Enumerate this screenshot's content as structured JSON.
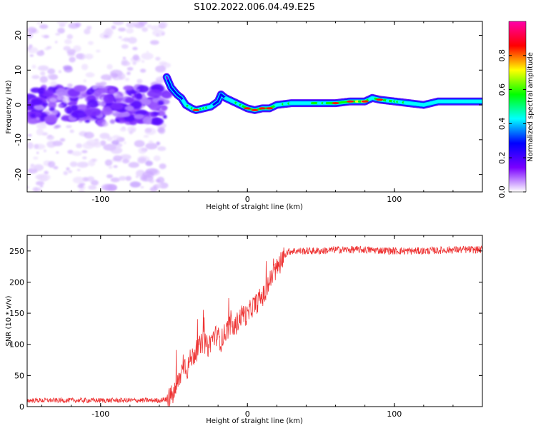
{
  "title": "S102.2022.006.04.49.E25",
  "chart_data": [
    {
      "type": "heatmap",
      "xlabel": "Height of straight line (km)",
      "ylabel": "Frequency (Hz)",
      "xlim": [
        -150,
        160
      ],
      "ylim": [
        -25,
        24
      ],
      "xticks": [
        -100,
        0,
        100
      ],
      "xtick_labels": [
        "-100",
        "0",
        "100"
      ],
      "yticks": [
        -20,
        -10,
        0,
        10,
        20
      ],
      "ytick_labels": [
        "-20",
        "-10",
        "0",
        "10",
        "20"
      ],
      "colorbar": {
        "label": "Normalized spectral amplitude",
        "range": [
          0,
          1
        ],
        "ticks": [
          0.0,
          0.2,
          0.4,
          0.6,
          0.8
        ],
        "tick_labels": [
          "0.0",
          "0.2",
          "0.4",
          "0.6",
          "0.8"
        ],
        "colors": [
          "#ffffff",
          "#7a00ff",
          "#0000ff",
          "#00ffff",
          "#00ff00",
          "#ffff00",
          "#ff0000",
          "#ff00aa"
        ]
      },
      "ridge": {
        "x": [
          -55,
          -52,
          -48,
          -45,
          -42,
          -38,
          -35,
          -30,
          -25,
          -20,
          -18,
          -15,
          -10,
          -5,
          0,
          5,
          10,
          15,
          20,
          30,
          40,
          50,
          60,
          70,
          80,
          85,
          90,
          100,
          110,
          120,
          130,
          140,
          150,
          160
        ],
        "y": [
          8,
          5,
          3,
          2,
          0,
          -1,
          -1.5,
          -1,
          -0.5,
          1,
          3,
          2,
          1,
          0,
          -1,
          -1.5,
          -1,
          -1,
          0,
          0.5,
          0.5,
          0.5,
          0.5,
          1,
          1,
          2,
          1.5,
          1,
          0.5,
          0,
          1,
          1,
          1,
          1
        ],
        "amplitude": [
          0.2,
          0.25,
          0.3,
          0.35,
          0.45,
          0.5,
          0.55,
          0.5,
          0.45,
          0.3,
          0.25,
          0.35,
          0.45,
          0.5,
          0.55,
          0.55,
          0.55,
          0.6,
          0.5,
          0.45,
          0.45,
          0.5,
          0.55,
          0.6,
          0.7,
          0.4,
          0.55,
          0.5,
          0.45,
          0.4,
          0.45,
          0.45,
          0.45,
          0.45
        ]
      },
      "noise_region": {
        "x_range": [
          -150,
          -55
        ],
        "y_range": [
          -25,
          24
        ],
        "dense_band_y": [
          -5,
          5
        ]
      }
    },
    {
      "type": "line",
      "xlabel": "Height of straight line (km)",
      "ylabel": "SNR (10 * v/v)",
      "xlim": [
        -150,
        160
      ],
      "ylim": [
        0,
        275
      ],
      "xticks": [
        -100,
        0,
        100
      ],
      "xtick_labels": [
        "-100",
        "0",
        "100"
      ],
      "yticks": [
        0,
        50,
        100,
        150,
        200,
        250
      ],
      "ytick_labels": [
        "0",
        "50",
        "100",
        "150",
        "200",
        "250"
      ],
      "color": "#ee3333",
      "series": [
        {
          "x": [
            -150,
            -120,
            -90,
            -60,
            -55,
            -50,
            -47,
            -45,
            -43,
            -41,
            -39,
            -36,
            -33,
            -30,
            -27,
            -24,
            -21,
            -18,
            -15,
            -12,
            -9,
            -6,
            -3,
            0,
            3,
            6,
            9,
            12,
            15,
            18,
            21,
            24,
            27,
            30,
            40,
            50,
            60,
            80,
            100,
            120,
            140,
            160
          ],
          "y": [
            10,
            10,
            10,
            10,
            12,
            20,
            40,
            55,
            70,
            60,
            75,
            85,
            95,
            105,
            95,
            110,
            115,
            105,
            120,
            130,
            125,
            140,
            150,
            145,
            160,
            165,
            175,
            180,
            200,
            215,
            225,
            240,
            248,
            250,
            250,
            250,
            252,
            252,
            250,
            250,
            252,
            252
          ]
        }
      ]
    }
  ]
}
